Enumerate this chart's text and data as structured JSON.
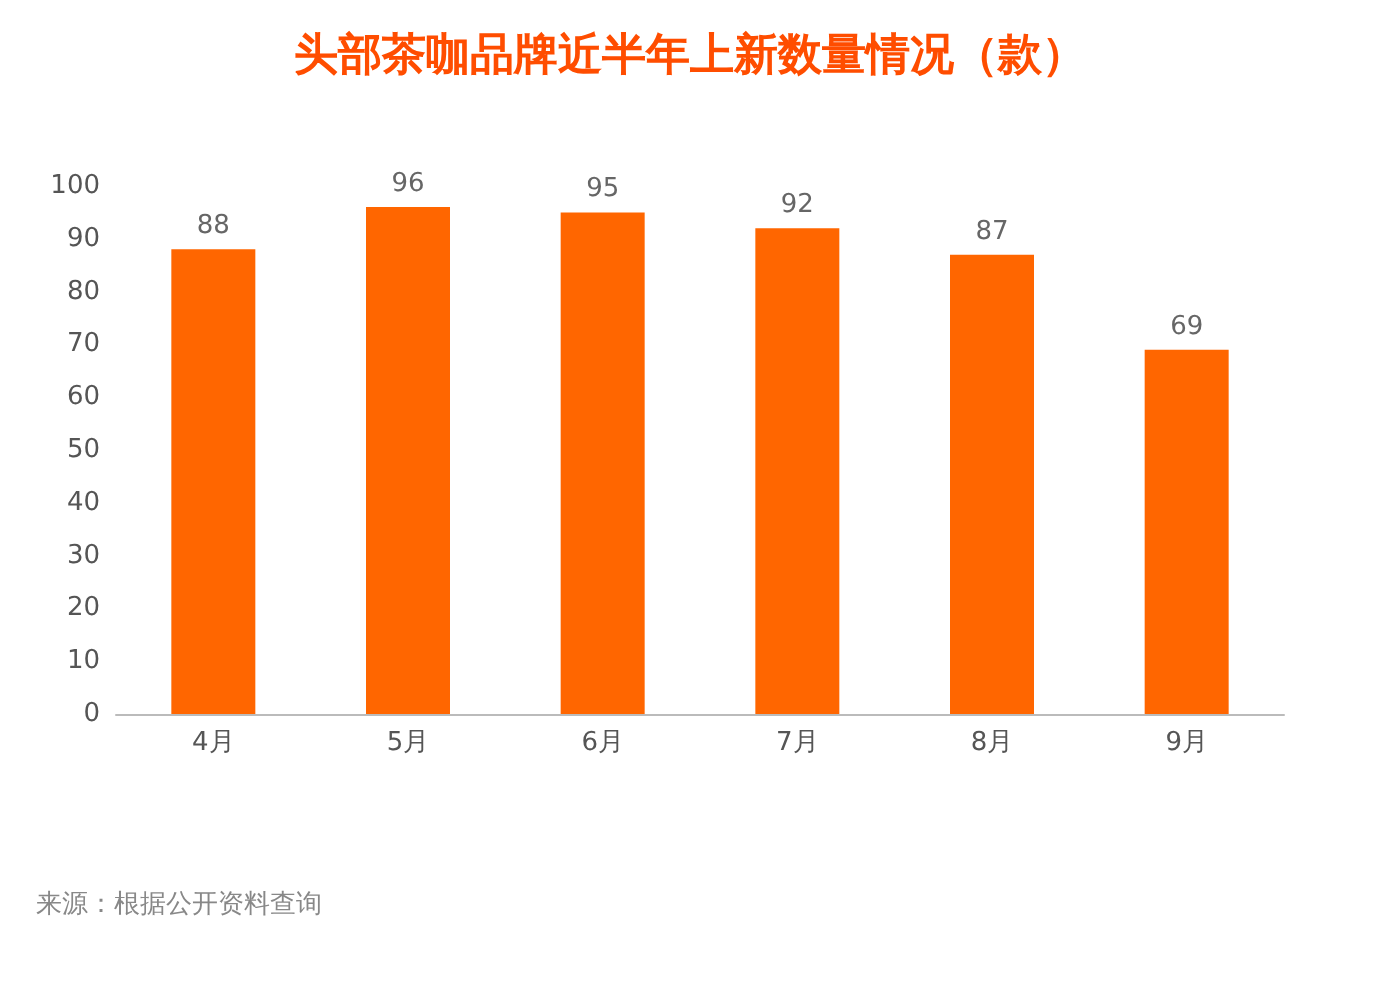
{
  "chart_data": {
    "type": "bar",
    "title": "头部茶咖品牌近半年上新数量情况（款）",
    "categories": [
      "4月",
      "5月",
      "6月",
      "7月",
      "8月",
      "9月"
    ],
    "values": [
      88,
      96,
      95,
      92,
      87,
      69
    ],
    "color": "#ff6600",
    "ylim": [
      0,
      100
    ],
    "yticks": [
      0,
      10,
      20,
      30,
      40,
      50,
      60,
      70,
      80,
      90,
      100
    ],
    "grid": false,
    "data_labels": true,
    "annotations": [
      "来源：根据公开资料查询"
    ]
  }
}
